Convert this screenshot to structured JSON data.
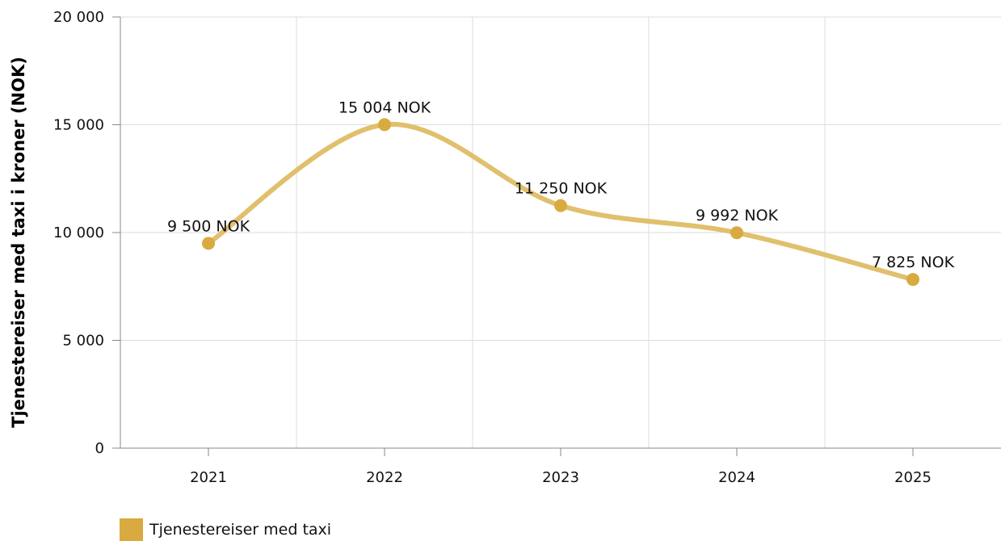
{
  "chart_data": {
    "type": "line",
    "smooth": true,
    "categories": [
      "2021",
      "2022",
      "2023",
      "2024",
      "2025"
    ],
    "series": [
      {
        "name": "Tjenestereiser med taxi",
        "values": [
          9500,
          15004,
          11250,
          9992,
          7825
        ],
        "data_labels": [
          "9 500 NOK",
          "15 004 NOK",
          "11 250 NOK",
          "9 992 NOK",
          "7 825 NOK"
        ],
        "color": "#d9aa3f"
      }
    ],
    "ylabel": "Tjenestereiser med taxi i kroner (NOK)",
    "xlabel": "",
    "ylim": [
      0,
      20000
    ],
    "yticks": [
      0,
      5000,
      10000,
      15000,
      20000
    ],
    "ytick_labels": [
      "0",
      "5 000",
      "10 000",
      "15 000",
      "20 000"
    ],
    "grid": true,
    "legend_position": "bottom-left",
    "line_color": "#e0c06c",
    "grid_color": "#dddddd",
    "axis_color": "#888888"
  }
}
